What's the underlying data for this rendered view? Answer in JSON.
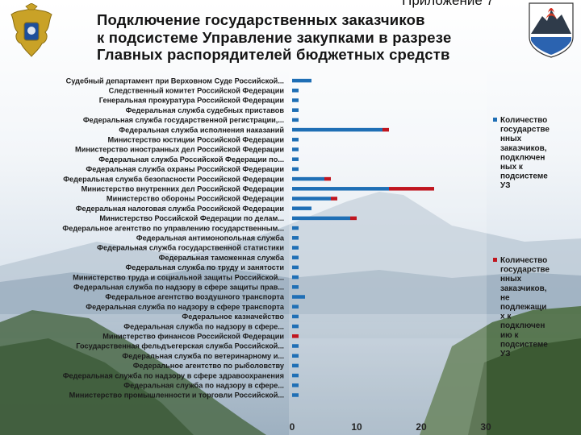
{
  "header": {
    "slide_label": "Приложение 7",
    "title_lines": [
      "Подключение государственных заказчиков",
      "к подсистеме  Управление закупками в разрезе",
      "Главных распорядителей бюджетных средств"
    ]
  },
  "colors": {
    "series_connected": "#1f6fb5",
    "series_not_required": "#c0161f"
  },
  "chart_data": {
    "type": "bar",
    "orientation": "horizontal",
    "stacked": true,
    "categories": [
      "Судебный департамент при Верховном Суде Российской...",
      "Следственный комитет Российской Федерации",
      "Генеральная прокуратура Российской Федерации",
      "Федеральная служба судебных приставов",
      "Федеральная служба государственной регистрации,...",
      "Федеральная служба исполнения наказаний",
      "Министерство юстиции Российской Федерации",
      "Министерство иностранных дел Российской Федерации",
      "Федеральная служба Российской Федерации по...",
      "Федеральная служба охраны Российской Федерации",
      "Федеральная служба безопасности Российской Федерации",
      "Министерство внутренних дел Российской Федерации",
      "Министерство обороны Российской Федерации",
      "Федеральная налоговая служба Российской Федерации",
      "Министерство Российской Федерации по делам...",
      "Федеральное агентство по управлению государственным...",
      "Федеральная антимонопольная служба",
      "Федеральная служба государственной статистики",
      "Федеральная таможенная служба",
      "Федеральная служба по труду и занятости",
      "Министерство труда и социальной защиты Российской...",
      "Федеральная служба по надзору в сфере защиты прав...",
      "Федеральное агентство воздушного транспорта",
      "Федеральная служба по надзору в сфере транспорта",
      "Федеральное казначейство",
      "Федеральная служба по надзору в сфере...",
      "Министерство финансов Российской Федерации",
      "Государственная фельдъегерская служба Российской...",
      "Федеральная служба по ветеринарному и...",
      "Федеральное агентство по рыболовству",
      "Федеральная служба по надзору в сфере здравоохранения",
      "Федеральная служба по надзору в сфере...",
      "Министерство промышленности и торговли Российской..."
    ],
    "series": [
      {
        "name": "Количество государственных заказчиков, подключенных к подсистеме УЗ",
        "values": [
          3,
          1,
          1,
          1,
          1,
          14,
          1,
          1,
          1,
          1,
          5,
          15,
          6,
          3,
          9,
          1,
          1,
          1,
          1,
          1,
          1,
          1,
          2,
          1,
          1,
          1,
          0,
          1,
          1,
          1,
          1,
          1,
          1
        ]
      },
      {
        "name": "Количество государственных заказчиков, не подлежащих к подключению к подсистеме УЗ",
        "values": [
          0,
          0,
          0,
          0,
          0,
          1,
          0,
          0,
          0,
          0,
          1,
          7,
          1,
          0,
          1,
          0,
          0,
          0,
          0,
          0,
          0,
          0,
          0,
          0,
          0,
          0,
          1,
          0,
          0,
          0,
          0,
          0,
          0
        ]
      }
    ],
    "xlim": [
      0,
      30
    ],
    "xticks": [
      "0",
      "10",
      "20",
      "30"
    ],
    "legend": {
      "placement": "right",
      "entries": [
        [
          "Количество",
          "государстве",
          "нных",
          "заказчиков,",
          "подключен",
          "ных к",
          "подсистеме",
          "УЗ"
        ],
        [
          "Количество",
          "государстве",
          "нных",
          "заказчиков,",
          "не",
          "подлежащи",
          "х к",
          "подключен",
          "ию к",
          "подсистеме",
          "УЗ"
        ]
      ]
    },
    "grid": false
  }
}
